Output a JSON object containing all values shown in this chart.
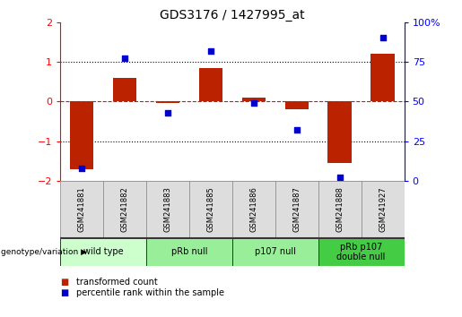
{
  "title": "GDS3176 / 1427995_at",
  "samples": [
    "GSM241881",
    "GSM241882",
    "GSM241883",
    "GSM241885",
    "GSM241886",
    "GSM241887",
    "GSM241888",
    "GSM241927"
  ],
  "bar_values": [
    -1.7,
    0.6,
    -0.05,
    0.85,
    0.1,
    -0.2,
    -1.55,
    1.2
  ],
  "dot_values": [
    8,
    77,
    43,
    82,
    49,
    32,
    2,
    90
  ],
  "bar_color": "#bb2200",
  "dot_color": "#0000cc",
  "dotted_lines": [
    -1,
    1
  ],
  "ylim": [
    -2,
    2
  ],
  "y2lim": [
    0,
    100
  ],
  "y_ticks": [
    -2,
    -1,
    0,
    1,
    2
  ],
  "y2_ticks": [
    0,
    25,
    50,
    75,
    100
  ],
  "groups": [
    {
      "label": "wild type",
      "start": 0,
      "end": 2,
      "color": "#ccffcc"
    },
    {
      "label": "pRb null",
      "start": 2,
      "end": 4,
      "color": "#99ee99"
    },
    {
      "label": "p107 null",
      "start": 4,
      "end": 6,
      "color": "#99ee99"
    },
    {
      "label": "pRb p107\ndouble null",
      "start": 6,
      "end": 8,
      "color": "#44cc44"
    }
  ],
  "genotype_label": "genotype/variation",
  "legend_bar": "transformed count",
  "legend_dot": "percentile rank within the sample",
  "bar_width": 0.55,
  "title_fontsize": 10,
  "tick_fontsize": 8,
  "sample_fontsize": 6,
  "group_fontsize": 7,
  "background_color": "#ffffff"
}
